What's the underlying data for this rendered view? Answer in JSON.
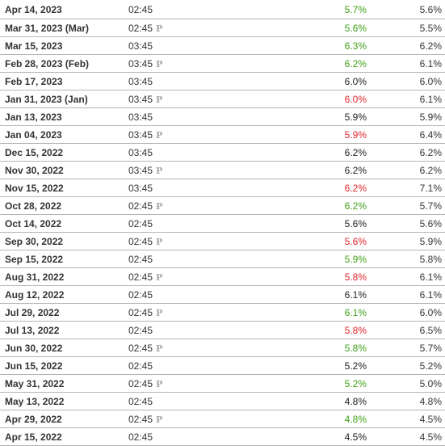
{
  "colors": {
    "up": "#41a11a",
    "down": "#e0262c",
    "neutral": "#222222",
    "preliminary_marker": "#a6a6a6",
    "row_border": "#b5b5b5"
  },
  "preliminary_marker": "P",
  "rows": [
    {
      "date": "Apr 14, 2023",
      "time": "02:45",
      "preliminary": false,
      "actual": "5.7%",
      "actual_trend": "up",
      "forecast": "5.6%"
    },
    {
      "date": "Mar 31, 2023 (Mar)",
      "time": "02:45",
      "preliminary": true,
      "actual": "5.6%",
      "actual_trend": "up",
      "forecast": "5.5%"
    },
    {
      "date": "Mar 15, 2023",
      "time": "03:45",
      "preliminary": false,
      "actual": "6.3%",
      "actual_trend": "up",
      "forecast": "6.2%"
    },
    {
      "date": "Feb 28, 2023 (Feb)",
      "time": "03:45",
      "preliminary": true,
      "actual": "6.2%",
      "actual_trend": "up",
      "forecast": "6.1%"
    },
    {
      "date": "Feb 17, 2023",
      "time": "03:45",
      "preliminary": false,
      "actual": "6.0%",
      "actual_trend": "neutral",
      "forecast": "6.0%"
    },
    {
      "date": "Jan 31, 2023 (Jan)",
      "time": "03:45",
      "preliminary": true,
      "actual": "6.0%",
      "actual_trend": "down",
      "forecast": "6.1%"
    },
    {
      "date": "Jan 13, 2023",
      "time": "03:45",
      "preliminary": false,
      "actual": "5.9%",
      "actual_trend": "neutral",
      "forecast": "5.9%"
    },
    {
      "date": "Jan 04, 2023",
      "time": "03:45",
      "preliminary": true,
      "actual": "5.9%",
      "actual_trend": "down",
      "forecast": "6.4%"
    },
    {
      "date": "Dec 15, 2022",
      "time": "03:45",
      "preliminary": false,
      "actual": "6.2%",
      "actual_trend": "neutral",
      "forecast": "6.2%"
    },
    {
      "date": "Nov 30, 2022",
      "time": "03:45",
      "preliminary": true,
      "actual": "6.2%",
      "actual_trend": "neutral",
      "forecast": "6.2%"
    },
    {
      "date": "Nov 15, 2022",
      "time": "03:45",
      "preliminary": false,
      "actual": "6.2%",
      "actual_trend": "down",
      "forecast": "7.1%"
    },
    {
      "date": "Oct 28, 2022",
      "time": "02:45",
      "preliminary": true,
      "actual": "6.2%",
      "actual_trend": "up",
      "forecast": "5.7%"
    },
    {
      "date": "Oct 14, 2022",
      "time": "02:45",
      "preliminary": false,
      "actual": "5.6%",
      "actual_trend": "neutral",
      "forecast": "5.6%"
    },
    {
      "date": "Sep 30, 2022",
      "time": "02:45",
      "preliminary": true,
      "actual": "5.6%",
      "actual_trend": "down",
      "forecast": "5.9%"
    },
    {
      "date": "Sep 15, 2022",
      "time": "02:45",
      "preliminary": false,
      "actual": "5.9%",
      "actual_trend": "up",
      "forecast": "5.8%"
    },
    {
      "date": "Aug 31, 2022",
      "time": "02:45",
      "preliminary": true,
      "actual": "5.8%",
      "actual_trend": "down",
      "forecast": "6.1%"
    },
    {
      "date": "Aug 12, 2022",
      "time": "02:45",
      "preliminary": false,
      "actual": "6.1%",
      "actual_trend": "neutral",
      "forecast": "6.1%"
    },
    {
      "date": "Jul 29, 2022",
      "time": "02:45",
      "preliminary": true,
      "actual": "6.1%",
      "actual_trend": "up",
      "forecast": "6.0%"
    },
    {
      "date": "Jul 13, 2022",
      "time": "02:45",
      "preliminary": false,
      "actual": "5.8%",
      "actual_trend": "down",
      "forecast": "6.5%"
    },
    {
      "date": "Jun 30, 2022",
      "time": "02:45",
      "preliminary": true,
      "actual": "5.8%",
      "actual_trend": "up",
      "forecast": "5.7%"
    },
    {
      "date": "Jun 15, 2022",
      "time": "02:45",
      "preliminary": false,
      "actual": "5.2%",
      "actual_trend": "neutral",
      "forecast": "5.2%"
    },
    {
      "date": "May 31, 2022",
      "time": "02:45",
      "preliminary": true,
      "actual": "5.2%",
      "actual_trend": "up",
      "forecast": "5.0%"
    },
    {
      "date": "May 13, 2022",
      "time": "02:45",
      "preliminary": false,
      "actual": "4.8%",
      "actual_trend": "neutral",
      "forecast": "4.8%"
    },
    {
      "date": "Apr 29, 2022",
      "time": "02:45",
      "preliminary": true,
      "actual": "4.8%",
      "actual_trend": "up",
      "forecast": "4.5%"
    },
    {
      "date": "Apr 15, 2022",
      "time": "02:45",
      "preliminary": false,
      "actual": "4.5%",
      "actual_trend": "neutral",
      "forecast": "4.5%"
    }
  ]
}
